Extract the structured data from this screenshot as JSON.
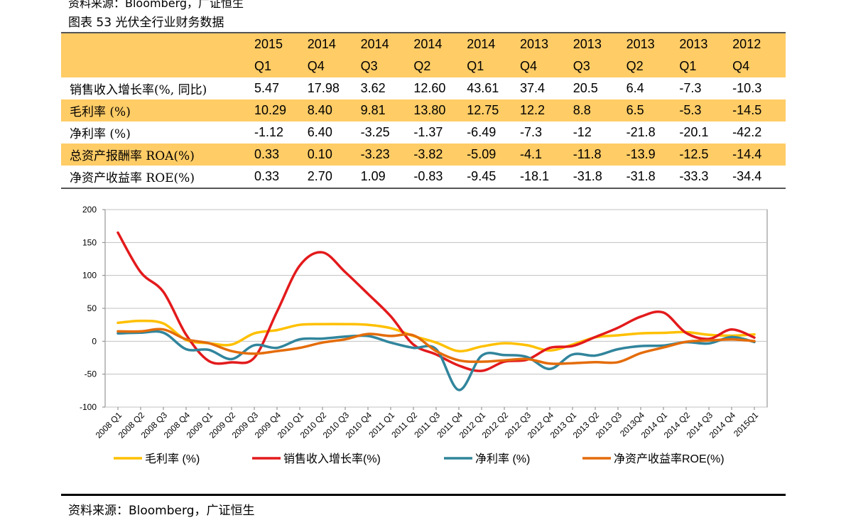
{
  "header": {
    "top_source_cut": "资料来源：Bloomberg，广证恒生",
    "figure_title": "图表 53 光伏全行业财务数据"
  },
  "table": {
    "columns": [
      {
        "year": "2015",
        "q": "Q1"
      },
      {
        "year": "2014",
        "q": "Q4"
      },
      {
        "year": "2014",
        "q": "Q3"
      },
      {
        "year": "2014",
        "q": "Q2"
      },
      {
        "year": "2014",
        "q": "Q1"
      },
      {
        "year": "2013",
        "q": "Q4"
      },
      {
        "year": "2013",
        "q": "Q3"
      },
      {
        "year": "2013",
        "q": "Q2"
      },
      {
        "year": "2013",
        "q": "Q1"
      },
      {
        "year": "2012",
        "q": "Q4"
      }
    ],
    "rows": [
      {
        "label": "销售收入增长率(%, 同比)",
        "band": false,
        "values": [
          "5.47",
          "17.98",
          "3.62",
          "12.60",
          "43.61",
          "37.4",
          "20.5",
          "6.4",
          "-7.3",
          "-10.3"
        ]
      },
      {
        "label": "毛利率 (%)",
        "band": true,
        "values": [
          "10.29",
          "8.40",
          "9.81",
          "13.80",
          "12.75",
          "12.2",
          "8.8",
          "6.5",
          "-5.3",
          "-14.5"
        ]
      },
      {
        "label": "净利率 (%)",
        "band": false,
        "values": [
          "-1.12",
          "6.40",
          "-3.25",
          "-1.37",
          "-6.49",
          "-7.3",
          "-12",
          "-21.8",
          "-20.1",
          "-42.2"
        ]
      },
      {
        "label": "总资产报酬率 ROA(%)",
        "band": true,
        "values": [
          "0.33",
          "0.10",
          "-3.23",
          "-3.82",
          "-5.09",
          "-4.1",
          "-11.8",
          "-13.9",
          "-12.5",
          "-14.4"
        ]
      },
      {
        "label": "净资产收益率 ROE(%)",
        "band": false,
        "values": [
          "0.33",
          "2.70",
          "1.09",
          "-0.83",
          "-9.45",
          "-18.1",
          "-31.8",
          "-31.8",
          "-33.3",
          "-34.4"
        ]
      }
    ]
  },
  "chart_data": {
    "type": "line",
    "categories": [
      "2008 Q1",
      "2008 Q2",
      "2008 Q3",
      "2008 Q4",
      "2009 Q1",
      "2009 Q2",
      "2009 Q3",
      "2009 Q4",
      "2010 Q1",
      "2010 Q2",
      "2010 Q3",
      "2010 Q4",
      "2011 Q1",
      "2011 Q2",
      "2011 Q3",
      "2011 Q4",
      "2012 Q1",
      "2012 Q2",
      "2012 Q3",
      "2012 Q4",
      "2013 Q1",
      "2013 Q2",
      "2013 Q3",
      "2013Q4",
      "2014 Q1",
      "2014 Q2",
      "2014 Q3",
      "2014 Q4",
      "2015Q1"
    ],
    "ylim": [
      -100,
      200
    ],
    "yticks": [
      -100,
      -50,
      0,
      50,
      100,
      150,
      200
    ],
    "grid": true,
    "legend_position": "bottom",
    "series": [
      {
        "name": "毛利率 (%)",
        "color": "#FFC000",
        "values": [
          28,
          31,
          27,
          2,
          -3,
          -5,
          12,
          17,
          25,
          26,
          26,
          25,
          20,
          8,
          -2,
          -15,
          -8,
          -3,
          -6,
          -14,
          -5,
          6,
          9,
          12,
          12.8,
          13.8,
          9.8,
          8.4,
          10.3
        ]
      },
      {
        "name": "销售收入增长率(%)",
        "color": "#E31A1C",
        "values": [
          165,
          105,
          75,
          10,
          -30,
          -32,
          -25,
          45,
          115,
          135,
          105,
          72,
          38,
          -5,
          -20,
          -37,
          -45,
          -31,
          -28,
          -10,
          -7.3,
          6.4,
          20.5,
          37.4,
          43.6,
          12.6,
          3.6,
          18,
          5.5
        ]
      },
      {
        "name": "净利率 (%)",
        "color": "#31859C",
        "values": [
          12,
          13,
          13,
          -12,
          -13,
          -27,
          -6,
          -10,
          3,
          4,
          7,
          8,
          -2,
          -10,
          -12,
          -74,
          -22,
          -21,
          -24,
          -42,
          -20.1,
          -21.8,
          -12,
          -7.3,
          -6.5,
          -1.4,
          -3.3,
          6.4,
          -1.1
        ]
      },
      {
        "name": "净资产收益率ROE(%)",
        "color": "#E46C0A",
        "values": [
          15,
          15,
          18,
          3,
          -3,
          -15,
          -19,
          -15,
          -10,
          -2,
          3,
          11,
          8,
          9,
          -15,
          -29,
          -31,
          -29,
          -27,
          -34,
          -33.3,
          -31.8,
          -31.8,
          -18.1,
          -9.5,
          -0.8,
          1.1,
          2.7,
          0.3
        ]
      }
    ]
  },
  "footer": {
    "source": "资料来源：Bloomberg，广证恒生"
  }
}
